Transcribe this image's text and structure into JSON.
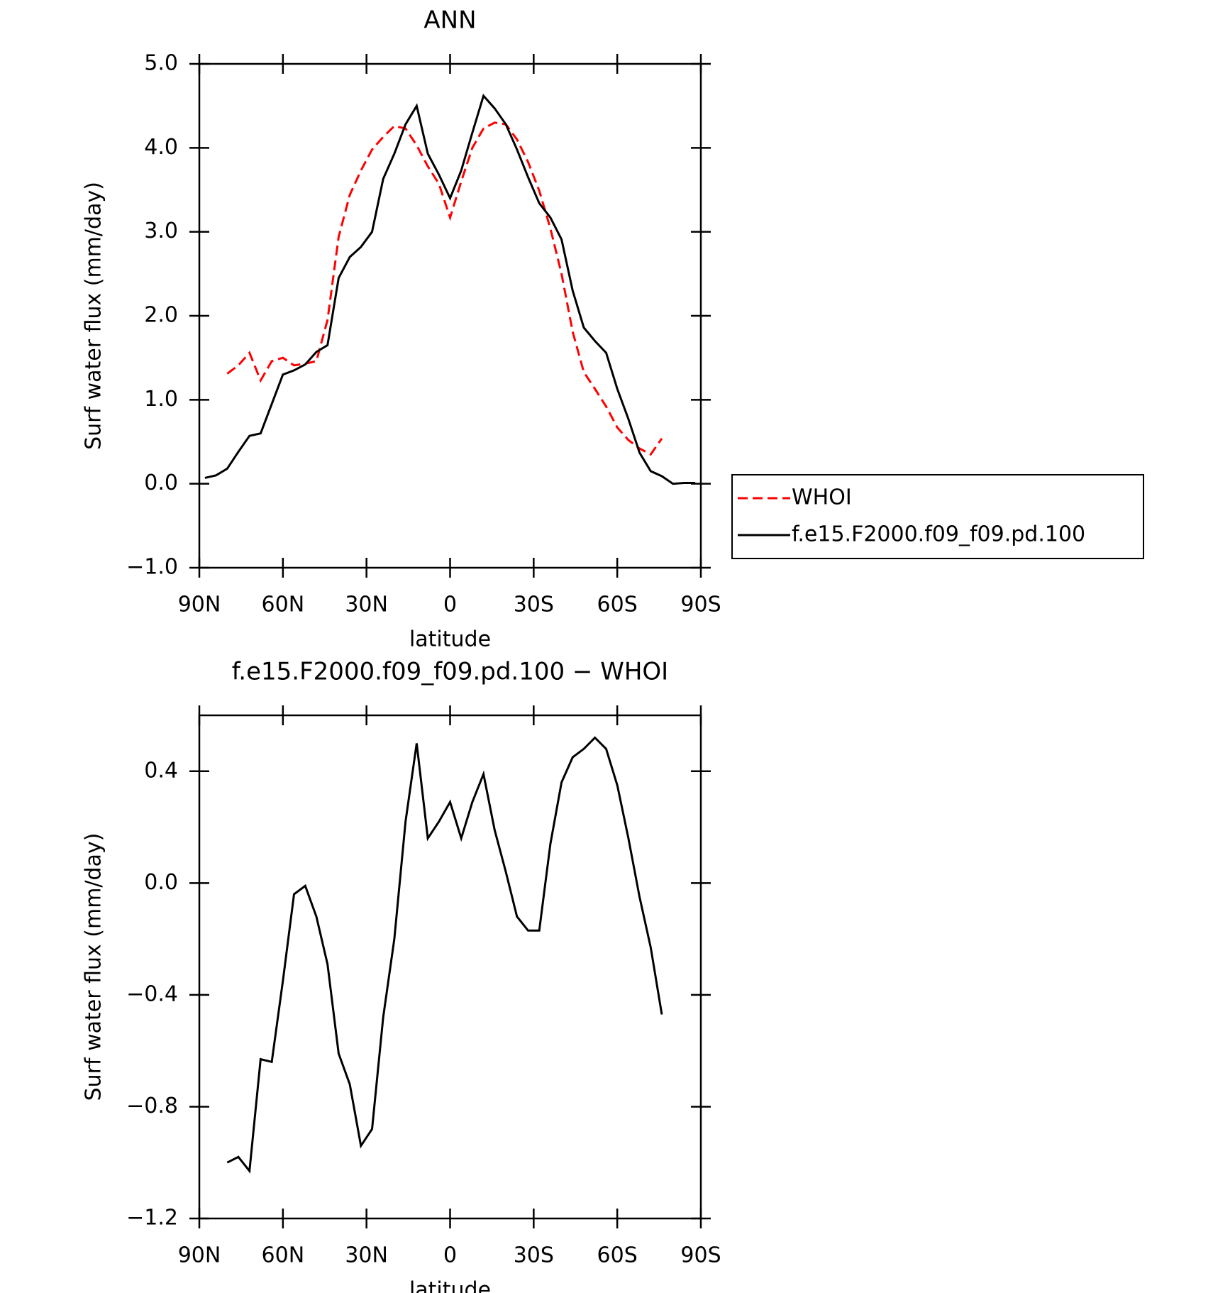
{
  "chart_data": [
    {
      "type": "line",
      "title": "ANN",
      "xlabel": "latitude",
      "ylabel": "Surf water flux (mm/day)",
      "xlim": [
        90,
        -90
      ],
      "ylim": [
        -1.0,
        5.0
      ],
      "xticks": [
        {
          "value": 90,
          "label": "90N"
        },
        {
          "value": 60,
          "label": "60N"
        },
        {
          "value": 30,
          "label": "30N"
        },
        0,
        {
          "value": -30,
          "label": "30S"
        },
        {
          "value": -60,
          "label": "60S"
        },
        {
          "value": -90,
          "label": "90S"
        }
      ],
      "yticks": [
        {
          "value": -1.0,
          "label": "−1.0"
        },
        {
          "value": 0,
          "label": "0.0"
        },
        {
          "value": 1.0,
          "label": "1.0"
        },
        {
          "value": 2.0,
          "label": "2.0"
        },
        {
          "value": 3.0,
          "label": "3.0"
        },
        {
          "value": 4.0,
          "label": "4.0"
        },
        {
          "value": 5.0,
          "label": "5.0"
        }
      ],
      "legend": "right",
      "x": [
        88,
        84,
        80,
        76,
        72,
        68,
        64,
        60,
        56,
        52,
        48,
        44,
        40,
        36,
        32,
        28,
        24,
        20,
        16,
        12,
        8,
        4,
        0,
        -4,
        -8,
        -12,
        -16,
        -20,
        -24,
        -28,
        -32,
        -36,
        -40,
        -44,
        -48,
        -52,
        -56,
        -60,
        -64,
        -68,
        -72,
        -76,
        -80,
        -84,
        -88
      ],
      "series": [
        {
          "name": "WHOI",
          "color": "#ff0000",
          "line_style": "dashed",
          "values": [
            null,
            null,
            1.31,
            1.41,
            1.56,
            1.23,
            1.46,
            1.5,
            1.41,
            1.43,
            1.46,
            1.95,
            2.94,
            3.44,
            3.73,
            3.98,
            4.13,
            4.26,
            4.23,
            4.03,
            3.78,
            3.57,
            3.17,
            3.6,
            4.0,
            4.23,
            4.3,
            4.28,
            4.1,
            3.83,
            3.49,
            3.04,
            2.5,
            1.81,
            1.33,
            1.13,
            0.92,
            0.67,
            0.52,
            0.42,
            0.35,
            0.54,
            null,
            null,
            null
          ]
        },
        {
          "name": "f.e15.F2000.f09_f09.pd.100",
          "color": "#000000",
          "line_style": "solid",
          "values": [
            0.07,
            0.1,
            0.18,
            0.38,
            0.57,
            0.6,
            0.95,
            1.3,
            1.35,
            1.42,
            1.57,
            1.65,
            2.45,
            2.7,
            2.82,
            3.0,
            3.63,
            3.93,
            4.28,
            4.5,
            3.93,
            3.68,
            3.4,
            3.73,
            4.18,
            4.62,
            4.47,
            4.28,
            3.98,
            3.65,
            3.34,
            3.17,
            2.91,
            2.3,
            1.86,
            1.7,
            1.56,
            1.13,
            0.77,
            0.37,
            0.15,
            0.09,
            0.0,
            0.01,
            0.01
          ]
        }
      ]
    },
    {
      "type": "line",
      "title": "f.e15.F2000.f09_f09.pd.100 − WHOI",
      "xlabel": "latitude",
      "ylabel": "Surf water flux (mm/day)",
      "xlim": [
        90,
        -90
      ],
      "ylim": [
        -1.2,
        0.6
      ],
      "xticks": [
        {
          "value": 90,
          "label": "90N"
        },
        {
          "value": 60,
          "label": "60N"
        },
        {
          "value": 30,
          "label": "30N"
        },
        0,
        {
          "value": -30,
          "label": "30S"
        },
        {
          "value": -60,
          "label": "60S"
        },
        {
          "value": -90,
          "label": "90S"
        }
      ],
      "yticks": [
        {
          "value": -1.2,
          "label": "−1.2"
        },
        {
          "value": -0.8,
          "label": "−0.8"
        },
        {
          "value": -0.4,
          "label": "−0.4"
        },
        {
          "value": 0,
          "label": "0.0"
        },
        {
          "value": 0.4,
          "label": "0.4"
        }
      ],
      "x": [
        80,
        76,
        72,
        68,
        64,
        60,
        56,
        52,
        48,
        44,
        40,
        36,
        32,
        28,
        24,
        20,
        16,
        12,
        8,
        4,
        0,
        -4,
        -8,
        -12,
        -16,
        -20,
        -24,
        -28,
        -32,
        -36,
        -40,
        -44,
        -48,
        -52,
        -56,
        -60,
        -64,
        -68,
        -72,
        -76
      ],
      "series": [
        {
          "color": "#000000",
          "line_style": "solid",
          "values": [
            -1.0,
            -0.98,
            -1.03,
            -0.63,
            -0.64,
            -0.35,
            -0.04,
            -0.01,
            -0.12,
            -0.29,
            -0.61,
            -0.72,
            -0.94,
            -0.88,
            -0.48,
            -0.2,
            0.22,
            0.5,
            0.16,
            0.22,
            0.29,
            0.16,
            0.29,
            0.39,
            0.19,
            0.04,
            -0.12,
            -0.17,
            -0.17,
            0.14,
            0.36,
            0.45,
            0.48,
            0.52,
            0.48,
            0.35,
            0.16,
            -0.05,
            -0.23,
            -0.47
          ]
        }
      ]
    }
  ]
}
